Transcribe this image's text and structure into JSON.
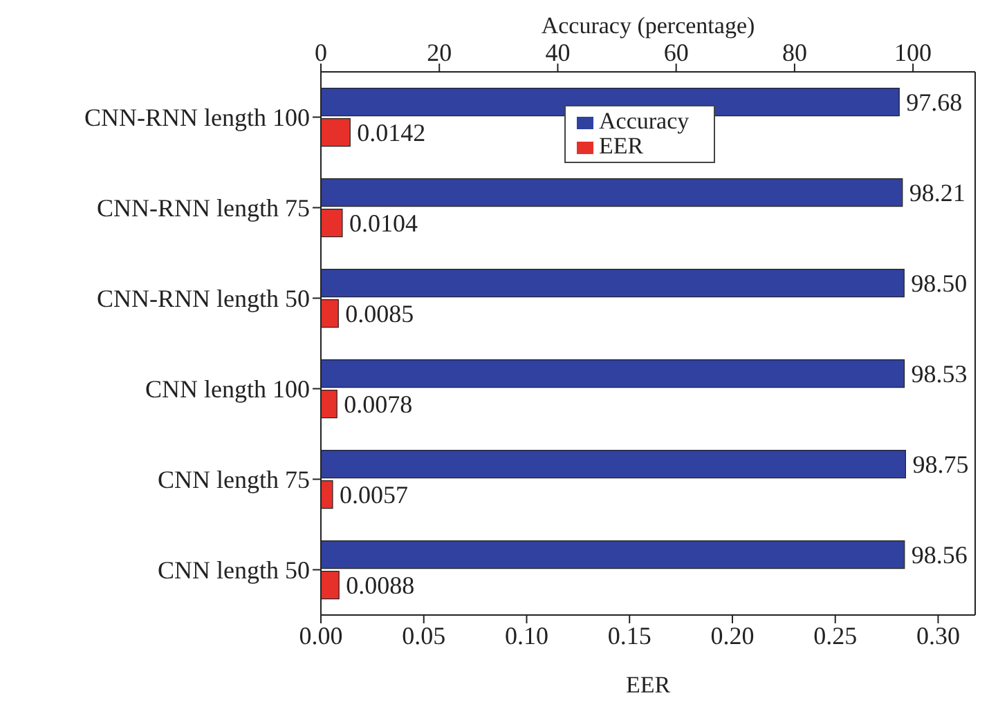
{
  "chart_data": {
    "type": "bar",
    "orientation": "horizontal",
    "xlabel": "EER",
    "x2label": "Accuracy (percentage)",
    "categories": [
      "CNN-RNN length 100",
      "CNN-RNN length 75",
      "CNN-RNN length 50",
      "CNN length 100",
      "CNN length 75",
      "CNN length 50"
    ],
    "series": [
      {
        "name": "Accuracy",
        "color": "#3041a0",
        "axis": "x2",
        "values": [
          97.68,
          98.21,
          98.5,
          98.53,
          98.75,
          98.56
        ],
        "value_labels": [
          "97.68",
          "98.21",
          "98.50",
          "98.53",
          "98.75",
          "98.56"
        ]
      },
      {
        "name": "EER",
        "color": "#e8302a",
        "values": [
          0.0142,
          0.0104,
          0.0085,
          0.0078,
          0.0057,
          0.0088
        ],
        "value_labels": [
          "0.0142",
          "0.0104",
          "0.0085",
          "0.0078",
          "0.0057",
          "0.0088"
        ]
      }
    ],
    "xlim": [
      0,
      0.318
    ],
    "xticks": [
      {
        "value": 0,
        "label": "0.00"
      },
      {
        "value": 0.05,
        "label": "0.05"
      },
      {
        "value": 0.1,
        "label": "0.10"
      },
      {
        "value": 0.15,
        "label": "0.15"
      },
      {
        "value": 0.2,
        "label": "0.20"
      },
      {
        "value": 0.25,
        "label": "0.25"
      },
      {
        "value": 0.3,
        "label": "0.30"
      }
    ],
    "x2lim": [
      0,
      110.5
    ],
    "x2ticks": [
      0,
      20,
      40,
      60,
      80,
      100
    ],
    "legend": "top",
    "grid": false
  }
}
